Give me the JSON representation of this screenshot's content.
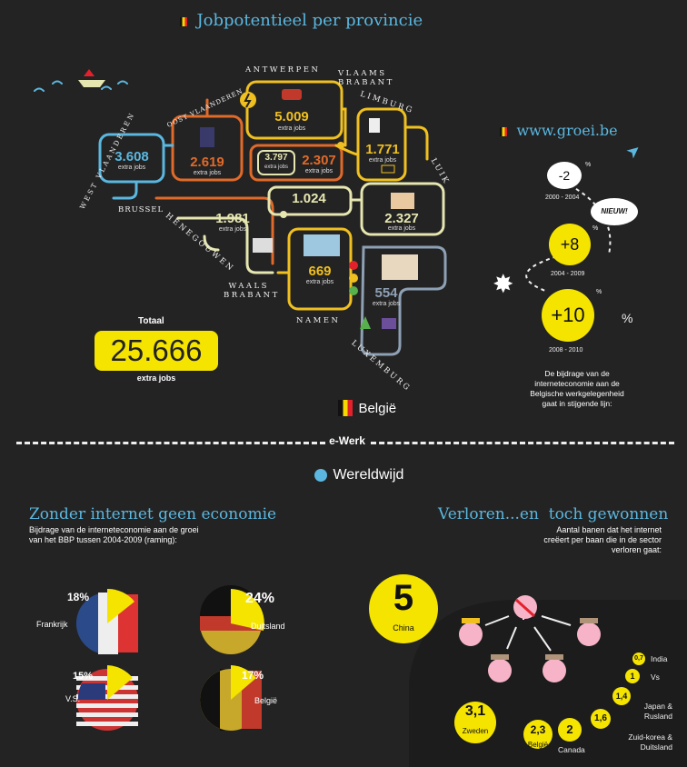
{
  "header": {
    "title": "Jobpotentieel per provincie"
  },
  "provinces": [
    {
      "id": "antwerpen",
      "label": "ANTWERPEN",
      "value": "5.009",
      "unit": "extra jobs",
      "color": "#f0c020"
    },
    {
      "id": "vlaams-brabant",
      "label": "VLAAMS BRABANT",
      "value": "2.307",
      "unit": "extra jobs",
      "color": "#e06a2a"
    },
    {
      "id": "limburg",
      "label": "LIMBURG",
      "value": "1.771",
      "unit": "extra jobs",
      "color": "#f0c020"
    },
    {
      "id": "oost-vlaanderen",
      "label": "OOST VLAANDEREN",
      "value": "2.619",
      "unit": "extra jobs",
      "color": "#e06a2a"
    },
    {
      "id": "west-vlaanderen",
      "label": "WEST VLAANDEREN",
      "value": "3.608",
      "unit": "extra jobs",
      "color": "#5bb7df"
    },
    {
      "id": "brussel",
      "label": "BRUSSEL",
      "value": "3.797",
      "unit": "extra jobs",
      "color": "#e6e6b0"
    },
    {
      "id": "henegouwen",
      "label": "HENEGOUWEN",
      "value": "1.981",
      "unit": "extra jobs",
      "color": "#e6e6b0"
    },
    {
      "id": "waals-brabant",
      "label": "WAALS BRABANT",
      "value": "1.024",
      "unit": "extra jobs",
      "color": "#e6e6b0"
    },
    {
      "id": "luik",
      "label": "LUIK",
      "value": "2.327",
      "unit": "extra jobs",
      "color": "#e6e6b0"
    },
    {
      "id": "namen",
      "label": "NAMEN",
      "value": "669",
      "unit": "extra jobs",
      "color": "#f0c020"
    },
    {
      "id": "luxemburg",
      "label": "LUXEMBURG",
      "value": "554",
      "unit": "extra jobs",
      "color": "#8ea0b4"
    }
  ],
  "total": {
    "label": "Totaal",
    "value": "25.666",
    "unit": "extra jobs"
  },
  "belgie_label": "België",
  "groei": {
    "url": "www.groei.be",
    "items": [
      {
        "value": "-2",
        "pct": "%",
        "period": "2000 - 2004"
      },
      {
        "value": "+8",
        "pct": "%",
        "period": "2004 - 2009"
      },
      {
        "value": "+10",
        "pct": "%",
        "period": "2008 - 2010"
      }
    ],
    "nieuw": "NIEUW!",
    "description": "De bijdrage van de interneteconomie aan de Belgische werkgelegenheid gaat in stijgende lijn:"
  },
  "divider": {
    "label": "e-Werk"
  },
  "world": {
    "label": "Wereldwijd"
  },
  "economie": {
    "title": "Zonder internet geen economie",
    "subtitle": "Bijdrage van de interneteconomie aan de groei van het BBP tussen 2004-2009 (raming):",
    "items": [
      {
        "country": "Frankrijk",
        "pct": "18%",
        "value": 18
      },
      {
        "country": "Duitsland",
        "pct": "24%",
        "value": 24
      },
      {
        "country": "V.S.",
        "pct": "15%",
        "value": 15
      },
      {
        "country": "België",
        "pct": "17%",
        "value": 17
      }
    ]
  },
  "verloren": {
    "title": "Verloren...en  toch gewonnen",
    "subtitle": "Aantal banen dat het internet creëert per baan die in de sector verloren gaat:",
    "china": {
      "value": "5",
      "label": "China"
    },
    "countries": [
      {
        "value": "3,1",
        "label": "Zweden"
      },
      {
        "value": "2,3",
        "label": "België"
      },
      {
        "value": "2",
        "label": "Canada"
      },
      {
        "value": "1,6",
        "label": "Zuid-korea & Duitsland"
      },
      {
        "value": "1,4",
        "label": "Japan & Rusland"
      },
      {
        "value": "1",
        "label": "Vs"
      },
      {
        "value": "0,7",
        "label": "India"
      }
    ]
  },
  "colors": {
    "background": "#232323",
    "accent": "#f5e400",
    "title_blue": "#5bb7df"
  }
}
